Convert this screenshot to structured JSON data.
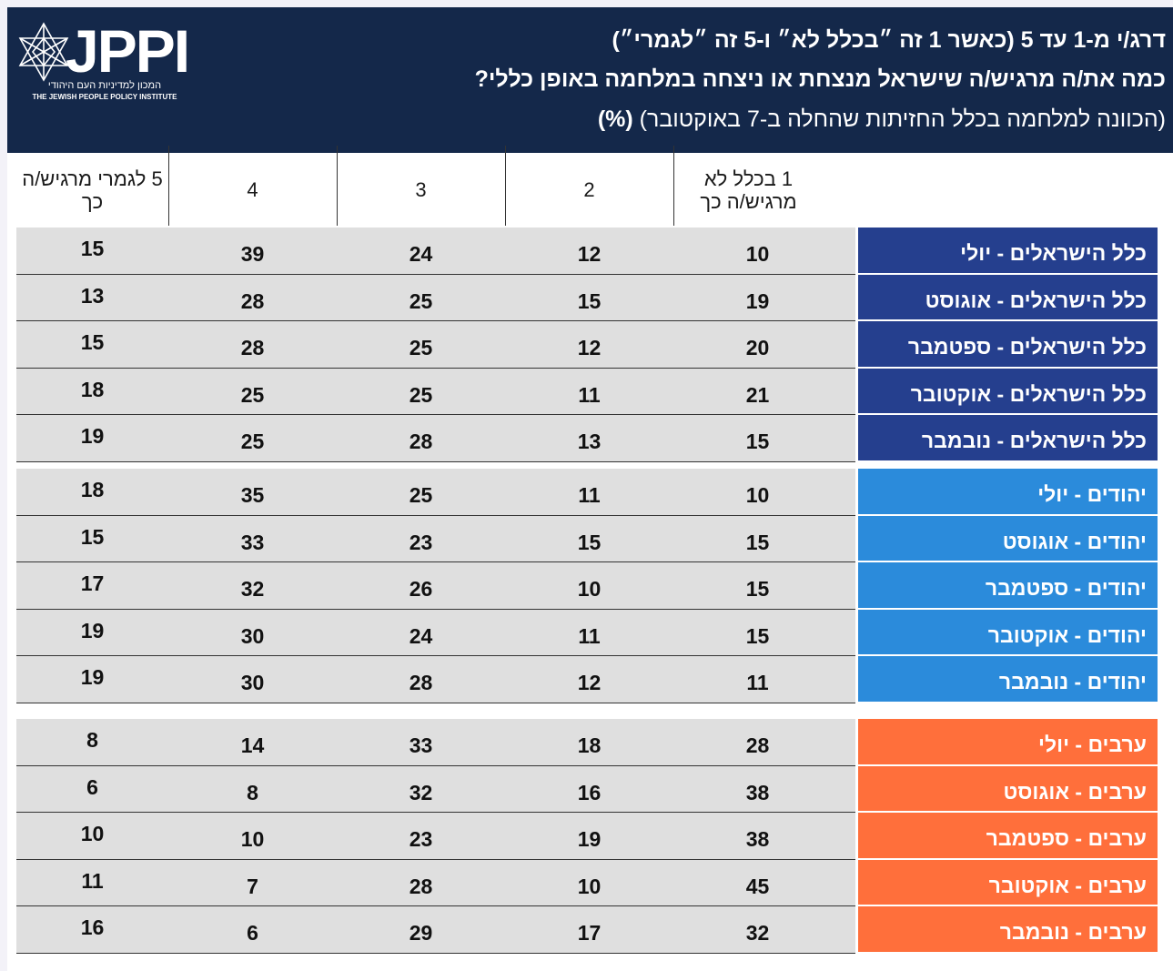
{
  "header": {
    "logo": "JPPI",
    "logo_he": "המכון למדיניות העם היהודי",
    "logo_en": "THE JEWISH PEOPLE POLICY INSTITUTE",
    "title": "דרג/י מ-1 עד 5 (כאשר 1 זה ״בכלל לא״ ו-5 זה ״לגמרי״)",
    "question": "כמה את/ה מרגיש/ה שישראל מנצחת או ניצחה במלחמה באופן כללי?",
    "subtitle": "(הכוונה למלחמה בכלל החזיתות שהחלה ב-7 באוקטובר)",
    "unit": "(%)"
  },
  "table": {
    "columns": [
      "1 בכלל לא מרגיש/ה כך",
      "2",
      "3",
      "4",
      "5 לגמרי מרגיש/ה כך"
    ],
    "groups": [
      {
        "color": "#253f8e",
        "rows": [
          {
            "label": "כלל הישראלים - יולי",
            "values": [
              10,
              12,
              24,
              39,
              15
            ]
          },
          {
            "label": "כלל הישראלים - אוגוסט",
            "values": [
              19,
              15,
              25,
              28,
              13
            ]
          },
          {
            "label": "כלל הישראלים - ספטמבר",
            "values": [
              20,
              12,
              25,
              28,
              15
            ]
          },
          {
            "label": "כלל הישראלים - אוקטובר",
            "values": [
              21,
              11,
              25,
              25,
              18
            ]
          },
          {
            "label": "כלל הישראלים - נובמבר",
            "values": [
              15,
              13,
              28,
              25,
              19
            ]
          }
        ]
      },
      {
        "color": "#2b8bdb",
        "rows": [
          {
            "label": "יהודים - יולי",
            "values": [
              10,
              11,
              25,
              35,
              18
            ]
          },
          {
            "label": "יהודים - אוגוסט",
            "values": [
              15,
              15,
              23,
              33,
              15
            ]
          },
          {
            "label": "יהודים - ספטמבר",
            "values": [
              15,
              10,
              26,
              32,
              17
            ]
          },
          {
            "label": "יהודים - אוקטובר",
            "values": [
              15,
              11,
              24,
              30,
              19
            ]
          },
          {
            "label": "יהודים - נובמבר",
            "values": [
              11,
              12,
              28,
              30,
              19
            ]
          }
        ]
      },
      {
        "color": "#ff6f3b",
        "rows": [
          {
            "label": "ערבים - יולי",
            "values": [
              28,
              18,
              33,
              14,
              8
            ]
          },
          {
            "label": "ערבים - אוגוסט",
            "values": [
              38,
              16,
              32,
              8,
              6
            ]
          },
          {
            "label": "ערבים - ספטמבר",
            "values": [
              38,
              19,
              23,
              10,
              10
            ]
          },
          {
            "label": "ערבים - אוקטובר",
            "values": [
              45,
              10,
              28,
              7,
              11
            ]
          },
          {
            "label": "ערבים - נובמבר",
            "values": [
              32,
              17,
              29,
              6,
              16
            ]
          }
        ]
      }
    ]
  }
}
